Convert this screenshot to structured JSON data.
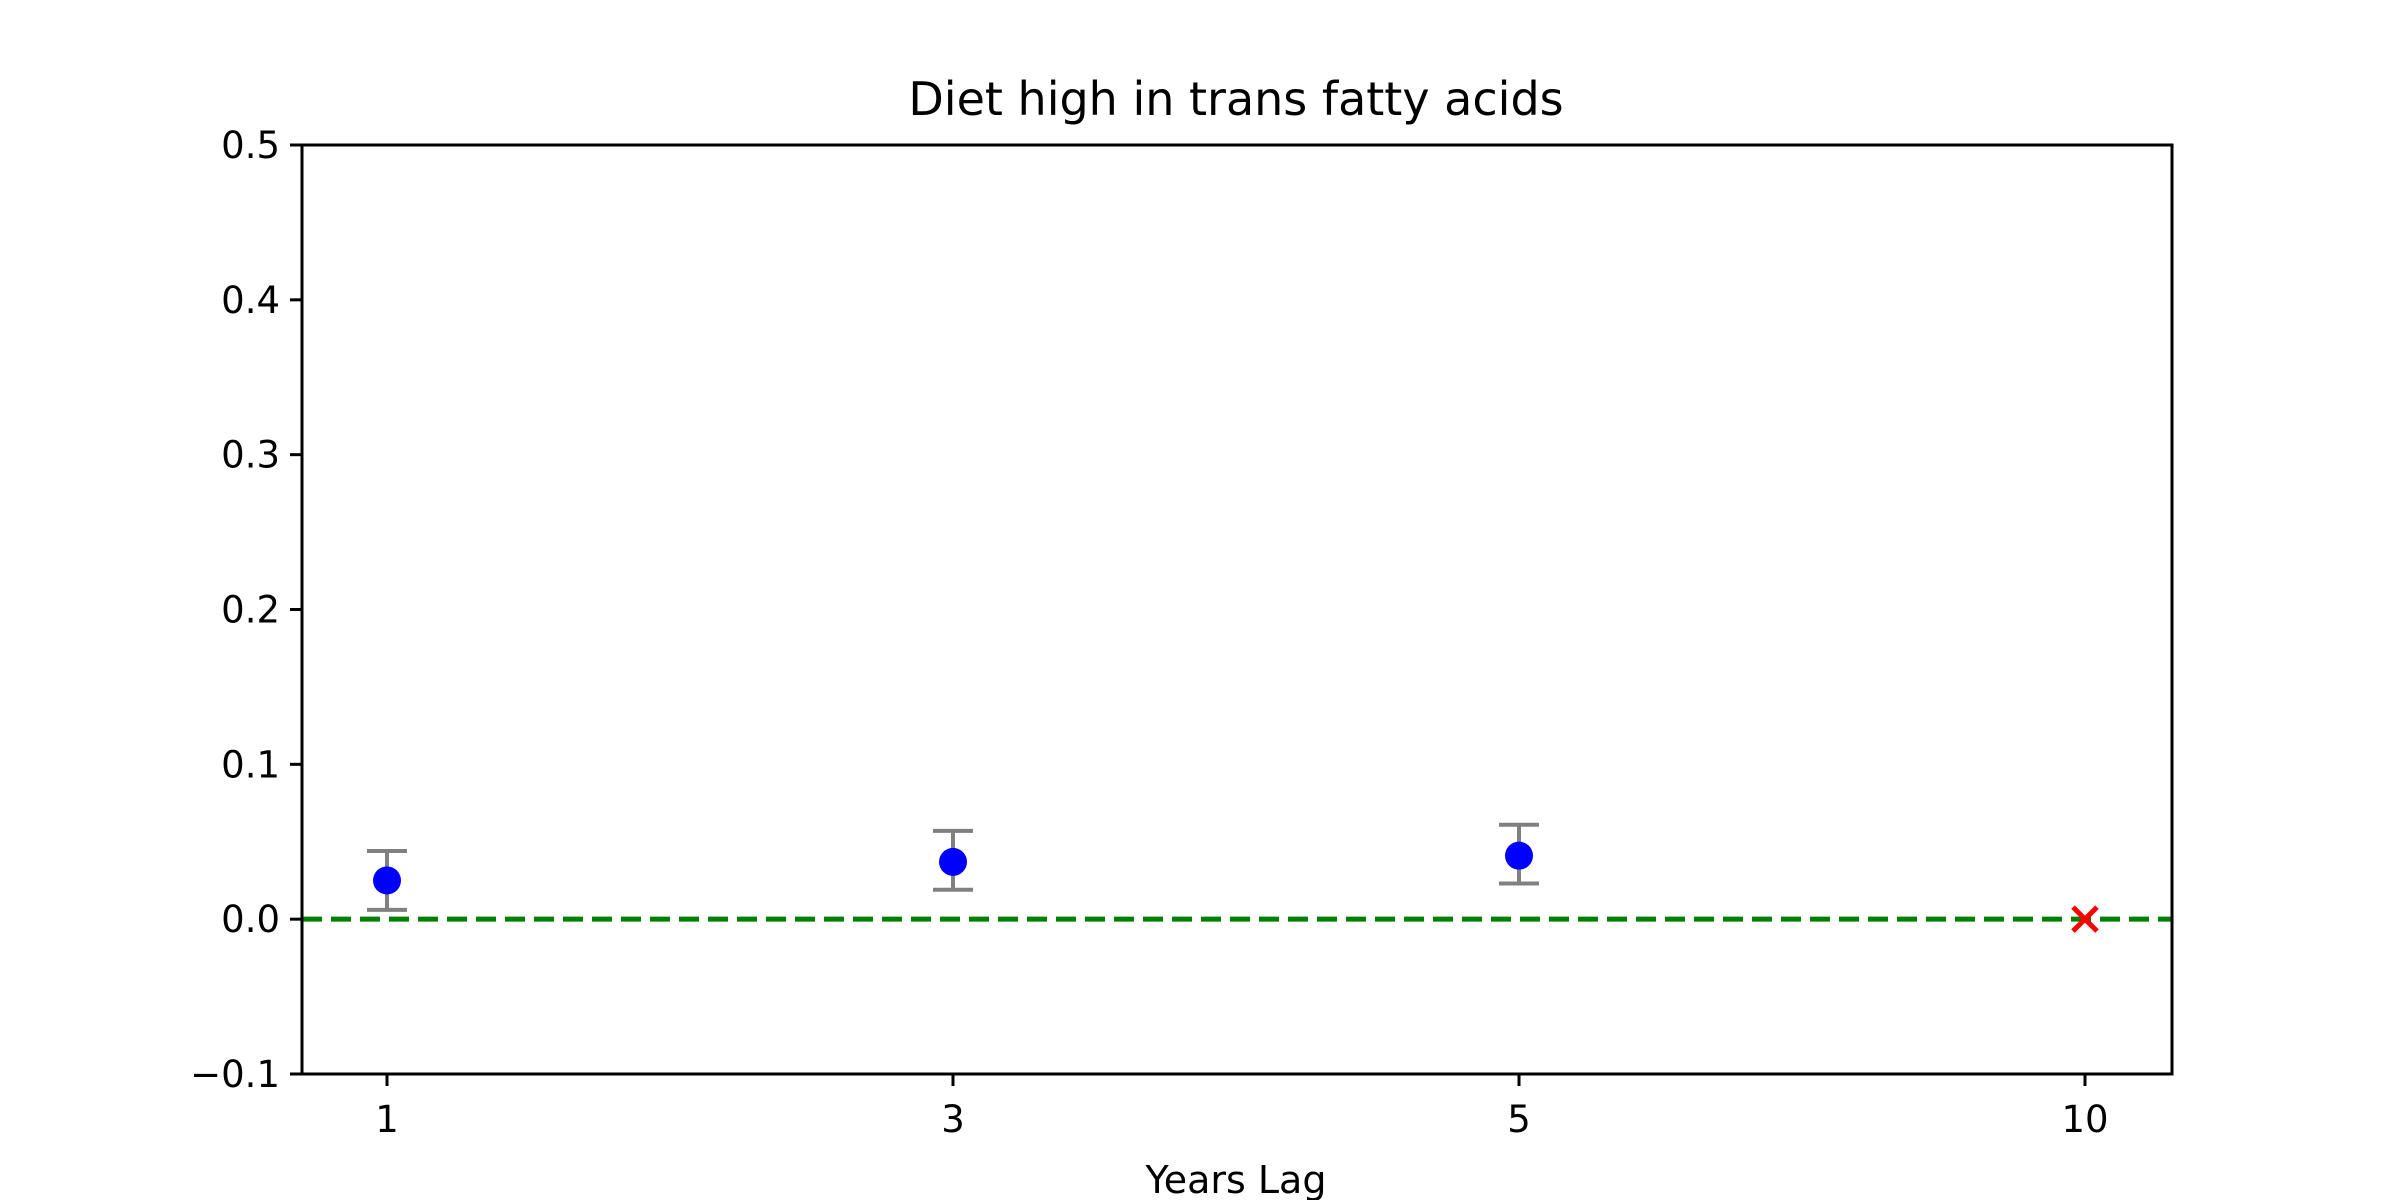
{
  "chart_data": {
    "type": "scatter",
    "title": "Diet high in trans fatty acids",
    "xlabel": "Years Lag",
    "ylabel": "",
    "ylim": [
      -0.1,
      0.5
    ],
    "x_categories": [
      "1",
      "3",
      "5",
      "10"
    ],
    "y_ticks": [
      -0.1,
      0.0,
      0.1,
      0.2,
      0.3,
      0.4,
      0.5
    ],
    "y_tick_labels": [
      "−0.1",
      "0.0",
      "0.1",
      "0.2",
      "0.3",
      "0.4",
      "0.5"
    ],
    "grid": false,
    "points": [
      {
        "x": "1",
        "y": 0.025,
        "ci_low": 0.006,
        "ci_high": 0.044
      },
      {
        "x": "3",
        "y": 0.037,
        "ci_low": 0.019,
        "ci_high": 0.057
      },
      {
        "x": "5",
        "y": 0.041,
        "ci_low": 0.023,
        "ci_high": 0.061
      }
    ],
    "missing_points": [
      {
        "x": "10",
        "y": 0.0,
        "marker": "x"
      }
    ],
    "reference_line": {
      "y": 0.0,
      "style": "dashed"
    },
    "colors": {
      "point": "#0000ff",
      "errorbar": "#808080",
      "missing_marker": "#ff0000",
      "reference_line": "#008000"
    }
  }
}
